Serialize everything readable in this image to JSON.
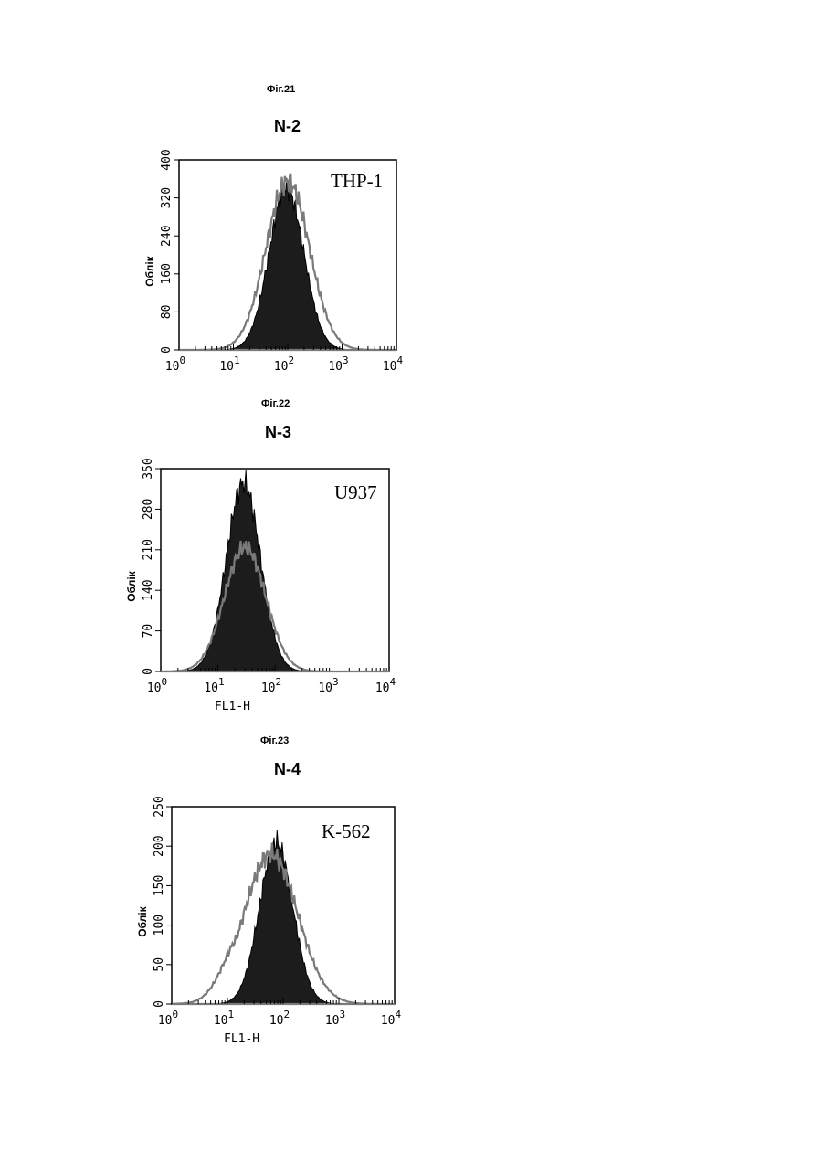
{
  "charts": [
    {
      "fig_label": "Фіг.21",
      "title": "N-2",
      "chart_data": {
        "type": "area",
        "title": "N-2",
        "annotation": "THP-1",
        "xlabel": "",
        "ylabel": "Облік",
        "xscale": "log",
        "xlim": [
          1,
          10000
        ],
        "ylim": [
          0,
          400
        ],
        "y_ticks": [
          "0",
          "80",
          "160",
          "240",
          "320",
          "400"
        ],
        "x_ticks": [
          "10^0",
          "10^1",
          "10^2",
          "10^3",
          "10^4"
        ],
        "series": [
          {
            "style": "filled",
            "peak_x": 95,
            "peak_y": 340,
            "width_decades": 0.32
          },
          {
            "style": "outline",
            "peak_x": 100,
            "peak_y": 355,
            "width_decades": 0.4
          }
        ]
      }
    },
    {
      "fig_label": "Фіг.22",
      "title": "N-3",
      "chart_data": {
        "type": "area",
        "title": "N-3",
        "annotation": "U937",
        "xlabel": "FL1-H",
        "ylabel": "Облік",
        "xscale": "log",
        "xlim": [
          1,
          10000
        ],
        "ylim": [
          0,
          350
        ],
        "y_ticks": [
          "0",
          "70",
          "140",
          "210",
          "280",
          "350"
        ],
        "x_ticks": [
          "10^0",
          "10^1",
          "10^2",
          "10^3",
          "10^4"
        ],
        "series": [
          {
            "style": "filled",
            "peak_x": 28,
            "peak_y": 325,
            "width_decades": 0.3
          },
          {
            "style": "outline",
            "peak_x": 30,
            "peak_y": 215,
            "width_decades": 0.36
          }
        ]
      }
    },
    {
      "fig_label": "Фіг.23",
      "title": "N-4",
      "chart_data": {
        "type": "area",
        "title": "N-4",
        "annotation": "K-562",
        "xlabel": "FL1-H",
        "ylabel": "Облік",
        "xscale": "log",
        "xlim": [
          1,
          10000
        ],
        "ylim": [
          0,
          250
        ],
        "y_ticks": [
          "0",
          "50",
          "100",
          "150",
          "200",
          "250"
        ],
        "x_ticks": [
          "10^0",
          "10^1",
          "10^2",
          "10^3",
          "10^4"
        ],
        "series": [
          {
            "style": "filled",
            "peak_x": 75,
            "peak_y": 205,
            "width_decades": 0.3
          },
          {
            "style": "outline",
            "peak_x": 60,
            "peak_y": 190,
            "width_decades": 0.48,
            "shoulder_x": 20,
            "shoulder_y": 90
          }
        ]
      }
    }
  ]
}
